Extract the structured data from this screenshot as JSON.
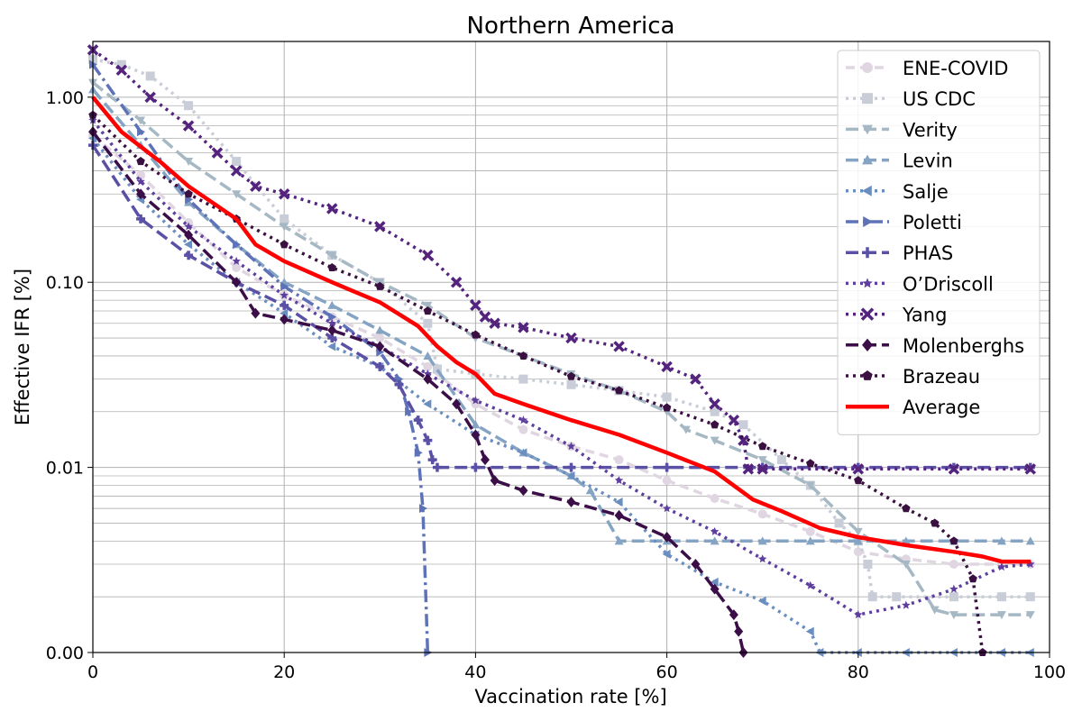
{
  "chart_data": {
    "type": "line",
    "title": "Northern America",
    "xlabel": "Vaccination rate [%]",
    "ylabel": "Effective IFR [%]",
    "xlim": [
      0,
      100
    ],
    "ylim_display": [
      0.0,
      2.0
    ],
    "y_scale": "log",
    "grid": true,
    "legend_position": "top-right",
    "x_ticks": [
      0,
      20,
      40,
      60,
      80,
      100
    ],
    "x_tick_labels": [
      "0",
      "20",
      "40",
      "60",
      "80",
      "100"
    ],
    "y_ticks": [
      0.001,
      0.01,
      0.1,
      1.0
    ],
    "y_tick_labels": [
      "0.00",
      "0.01",
      "0.10",
      "1.00"
    ],
    "series": [
      {
        "name": "ENE-COVID",
        "color": "#e0d6e2",
        "dash": "10,6",
        "marker": "circle",
        "x": [
          0,
          5,
          10,
          15,
          20,
          25,
          30,
          35,
          40,
          45,
          50,
          55,
          60,
          65,
          70,
          75,
          80,
          85,
          90,
          95,
          98
        ],
        "y": [
          0.62,
          0.38,
          0.21,
          0.12,
          0.085,
          0.065,
          0.05,
          0.035,
          0.022,
          0.016,
          0.013,
          0.011,
          0.0085,
          0.0068,
          0.0056,
          0.0045,
          0.0035,
          0.0032,
          0.003,
          0.003,
          0.003
        ]
      },
      {
        "name": "US CDC",
        "color": "#c8cdd8",
        "dash": "3,5",
        "marker": "square",
        "x": [
          0,
          3,
          6,
          10,
          15,
          20,
          25,
          30,
          35,
          36,
          40,
          45,
          50,
          55,
          60,
          65,
          68,
          72,
          75,
          78,
          80,
          81,
          81.5,
          84,
          90,
          95,
          98
        ],
        "y": [
          1.6,
          1.5,
          1.3,
          0.9,
          0.45,
          0.22,
          0.14,
          0.1,
          0.06,
          0.034,
          0.032,
          0.03,
          0.028,
          0.026,
          0.024,
          0.02,
          0.017,
          0.011,
          0.008,
          0.005,
          0.004,
          0.003,
          0.002,
          0.002,
          0.002,
          0.002,
          0.002
        ]
      },
      {
        "name": "Verity",
        "color": "#a5b8c4",
        "dash": "14,6",
        "marker": "triangle-down",
        "x": [
          0,
          5,
          10,
          15,
          20,
          25,
          30,
          35,
          40,
          45,
          50,
          55,
          60,
          62,
          65,
          70,
          75,
          80,
          85,
          88,
          90,
          95,
          98
        ],
        "y": [
          1.2,
          0.75,
          0.45,
          0.3,
          0.2,
          0.14,
          0.1,
          0.075,
          0.05,
          0.04,
          0.032,
          0.026,
          0.02,
          0.016,
          0.014,
          0.011,
          0.008,
          0.0045,
          0.003,
          0.0017,
          0.0016,
          0.0016,
          0.0016
        ]
      },
      {
        "name": "Levin",
        "color": "#85a4c4",
        "dash": "14,6",
        "marker": "triangle-up",
        "x": [
          0,
          5,
          10,
          15,
          20,
          25,
          30,
          35,
          40,
          45,
          50,
          52,
          55,
          60,
          65,
          70,
          75,
          80,
          85,
          90,
          95,
          98
        ],
        "y": [
          1.1,
          0.55,
          0.27,
          0.16,
          0.1,
          0.075,
          0.055,
          0.04,
          0.017,
          0.012,
          0.009,
          0.0075,
          0.004,
          0.004,
          0.004,
          0.004,
          0.004,
          0.004,
          0.004,
          0.004,
          0.004,
          0.004
        ]
      },
      {
        "name": "Salje",
        "color": "#6a8ec0",
        "dash": "3,5",
        "marker": "triangle-left",
        "x": [
          0,
          5,
          10,
          15,
          20,
          25,
          30,
          35,
          40,
          45,
          50,
          55,
          60,
          65,
          70,
          75,
          76,
          80,
          85,
          90,
          95,
          98
        ],
        "y": [
          0.6,
          0.28,
          0.16,
          0.1,
          0.068,
          0.045,
          0.035,
          0.022,
          0.015,
          0.012,
          0.009,
          0.0065,
          0.0034,
          0.0024,
          0.0019,
          0.0013,
          0.001,
          0.001,
          0.001,
          0.001,
          0.001,
          0.001
        ]
      },
      {
        "name": "Poletti",
        "color": "#5e72b8",
        "dash": "14,5,3,5",
        "marker": "triangle-right",
        "x": [
          0,
          5,
          10,
          15,
          20,
          25,
          30,
          32,
          33,
          34,
          34.5,
          35
        ],
        "y": [
          1.5,
          0.65,
          0.28,
          0.16,
          0.095,
          0.065,
          0.042,
          0.03,
          0.02,
          0.012,
          0.006,
          0.001
        ]
      },
      {
        "name": "PHAS",
        "color": "#5a50a6",
        "dash": "14,6",
        "marker": "plus",
        "x": [
          0,
          5,
          10,
          15,
          20,
          25,
          30,
          32,
          34,
          35,
          35.5,
          36,
          40,
          50,
          60,
          70,
          80,
          90,
          98
        ],
        "y": [
          0.55,
          0.22,
          0.14,
          0.1,
          0.075,
          0.05,
          0.035,
          0.028,
          0.018,
          0.014,
          0.011,
          0.01,
          0.01,
          0.01,
          0.01,
          0.01,
          0.01,
          0.01,
          0.01
        ]
      },
      {
        "name": "O’Driscoll",
        "color": "#5e3fa0",
        "dash": "3,5",
        "marker": "star",
        "x": [
          0,
          5,
          10,
          15,
          20,
          25,
          30,
          35,
          40,
          45,
          50,
          55,
          60,
          65,
          70,
          75,
          80,
          85,
          90,
          95,
          98
        ],
        "y": [
          0.75,
          0.35,
          0.2,
          0.13,
          0.085,
          0.06,
          0.045,
          0.032,
          0.023,
          0.018,
          0.013,
          0.0085,
          0.006,
          0.0045,
          0.0032,
          0.0023,
          0.0016,
          0.0018,
          0.0022,
          0.0029,
          0.003
        ]
      },
      {
        "name": "Yang",
        "color": "#54237e",
        "dash": "3,5",
        "marker": "x",
        "x": [
          0,
          3,
          6,
          10,
          13,
          15,
          17,
          20,
          25,
          30,
          35,
          38,
          40,
          41,
          42,
          45,
          50,
          55,
          60,
          63,
          65,
          67,
          68,
          68.5,
          70,
          80,
          90,
          98
        ],
        "y": [
          1.8,
          1.4,
          1.0,
          0.7,
          0.5,
          0.4,
          0.33,
          0.3,
          0.25,
          0.2,
          0.14,
          0.1,
          0.075,
          0.065,
          0.06,
          0.057,
          0.05,
          0.045,
          0.035,
          0.03,
          0.022,
          0.018,
          0.014,
          0.0098,
          0.0098,
          0.0098,
          0.0098,
          0.0098
        ]
      },
      {
        "name": "Molenberghs",
        "color": "#3b0e48",
        "dash": "14,6",
        "marker": "diamond",
        "x": [
          0,
          5,
          10,
          15,
          17,
          20,
          25,
          30,
          35,
          38,
          40,
          41,
          42,
          45,
          50,
          55,
          60,
          63,
          65,
          67,
          67.5,
          68
        ],
        "y": [
          0.65,
          0.3,
          0.18,
          0.1,
          0.068,
          0.063,
          0.055,
          0.045,
          0.03,
          0.022,
          0.015,
          0.011,
          0.0085,
          0.0075,
          0.0065,
          0.0055,
          0.0042,
          0.003,
          0.0022,
          0.0016,
          0.0013,
          0.001
        ]
      },
      {
        "name": "Brazeau",
        "color": "#3a1040",
        "dash": "3,5",
        "marker": "pentagon",
        "x": [
          0,
          5,
          10,
          15,
          20,
          25,
          30,
          35,
          40,
          45,
          50,
          55,
          60,
          65,
          70,
          75,
          80,
          85,
          88,
          90,
          92,
          93
        ],
        "y": [
          0.8,
          0.45,
          0.3,
          0.22,
          0.16,
          0.12,
          0.095,
          0.07,
          0.052,
          0.04,
          0.031,
          0.026,
          0.021,
          0.017,
          0.013,
          0.0105,
          0.0085,
          0.006,
          0.005,
          0.004,
          0.0025,
          0.001
        ]
      },
      {
        "name": "Average",
        "color": "#ff0000",
        "dash": "",
        "marker": "none",
        "x": [
          0,
          3,
          7,
          10,
          15,
          17,
          20,
          25,
          30,
          34,
          36,
          38,
          40,
          42,
          45,
          50,
          55,
          60,
          65,
          69,
          72,
          76,
          80,
          85,
          90,
          93,
          95,
          98
        ],
        "y": [
          1.0,
          0.65,
          0.45,
          0.33,
          0.22,
          0.16,
          0.13,
          0.1,
          0.078,
          0.058,
          0.045,
          0.037,
          0.032,
          0.025,
          0.022,
          0.018,
          0.015,
          0.012,
          0.0095,
          0.0067,
          0.0058,
          0.0047,
          0.0042,
          0.0038,
          0.0035,
          0.0033,
          0.0031,
          0.0031
        ]
      }
    ]
  }
}
